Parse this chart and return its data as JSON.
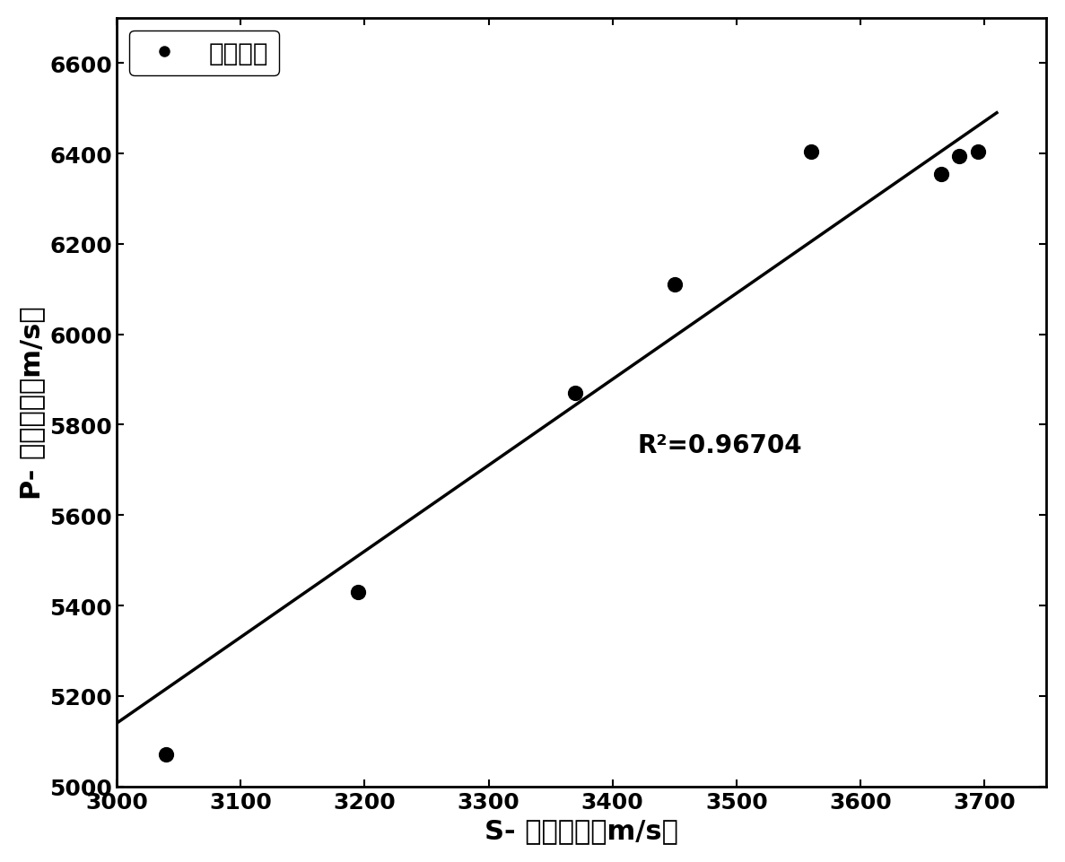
{
  "scatter_x": [
    3040,
    3195,
    3370,
    3450,
    3560,
    3665,
    3680,
    3695
  ],
  "scatter_y": [
    5070,
    5430,
    5870,
    6110,
    6405,
    6355,
    6395,
    6405
  ],
  "line_x": [
    3000,
    3710
  ],
  "line_y": [
    5140,
    6490
  ],
  "r_squared_text": "R²=0.96704",
  "r_squared_x": 3420,
  "r_squared_y": 5740,
  "xlabel": "S- 横波速度（m/s）",
  "ylabel": "P- 纵波速度（m/s）",
  "legend_label": "干擸岩石",
  "xlim": [
    3000,
    3750
  ],
  "ylim": [
    5000,
    6700
  ],
  "xticks": [
    3000,
    3100,
    3200,
    3300,
    3400,
    3500,
    3600,
    3700
  ],
  "yticks": [
    5000,
    5200,
    5400,
    5600,
    5800,
    6000,
    6200,
    6400,
    6600
  ],
  "scatter_color": "#000000",
  "line_color": "#000000",
  "marker_size": 130,
  "line_width": 2.5,
  "font_size_label": 22,
  "font_size_tick": 18,
  "font_size_legend": 20,
  "font_size_annotation": 20,
  "background_color": "#ffffff"
}
